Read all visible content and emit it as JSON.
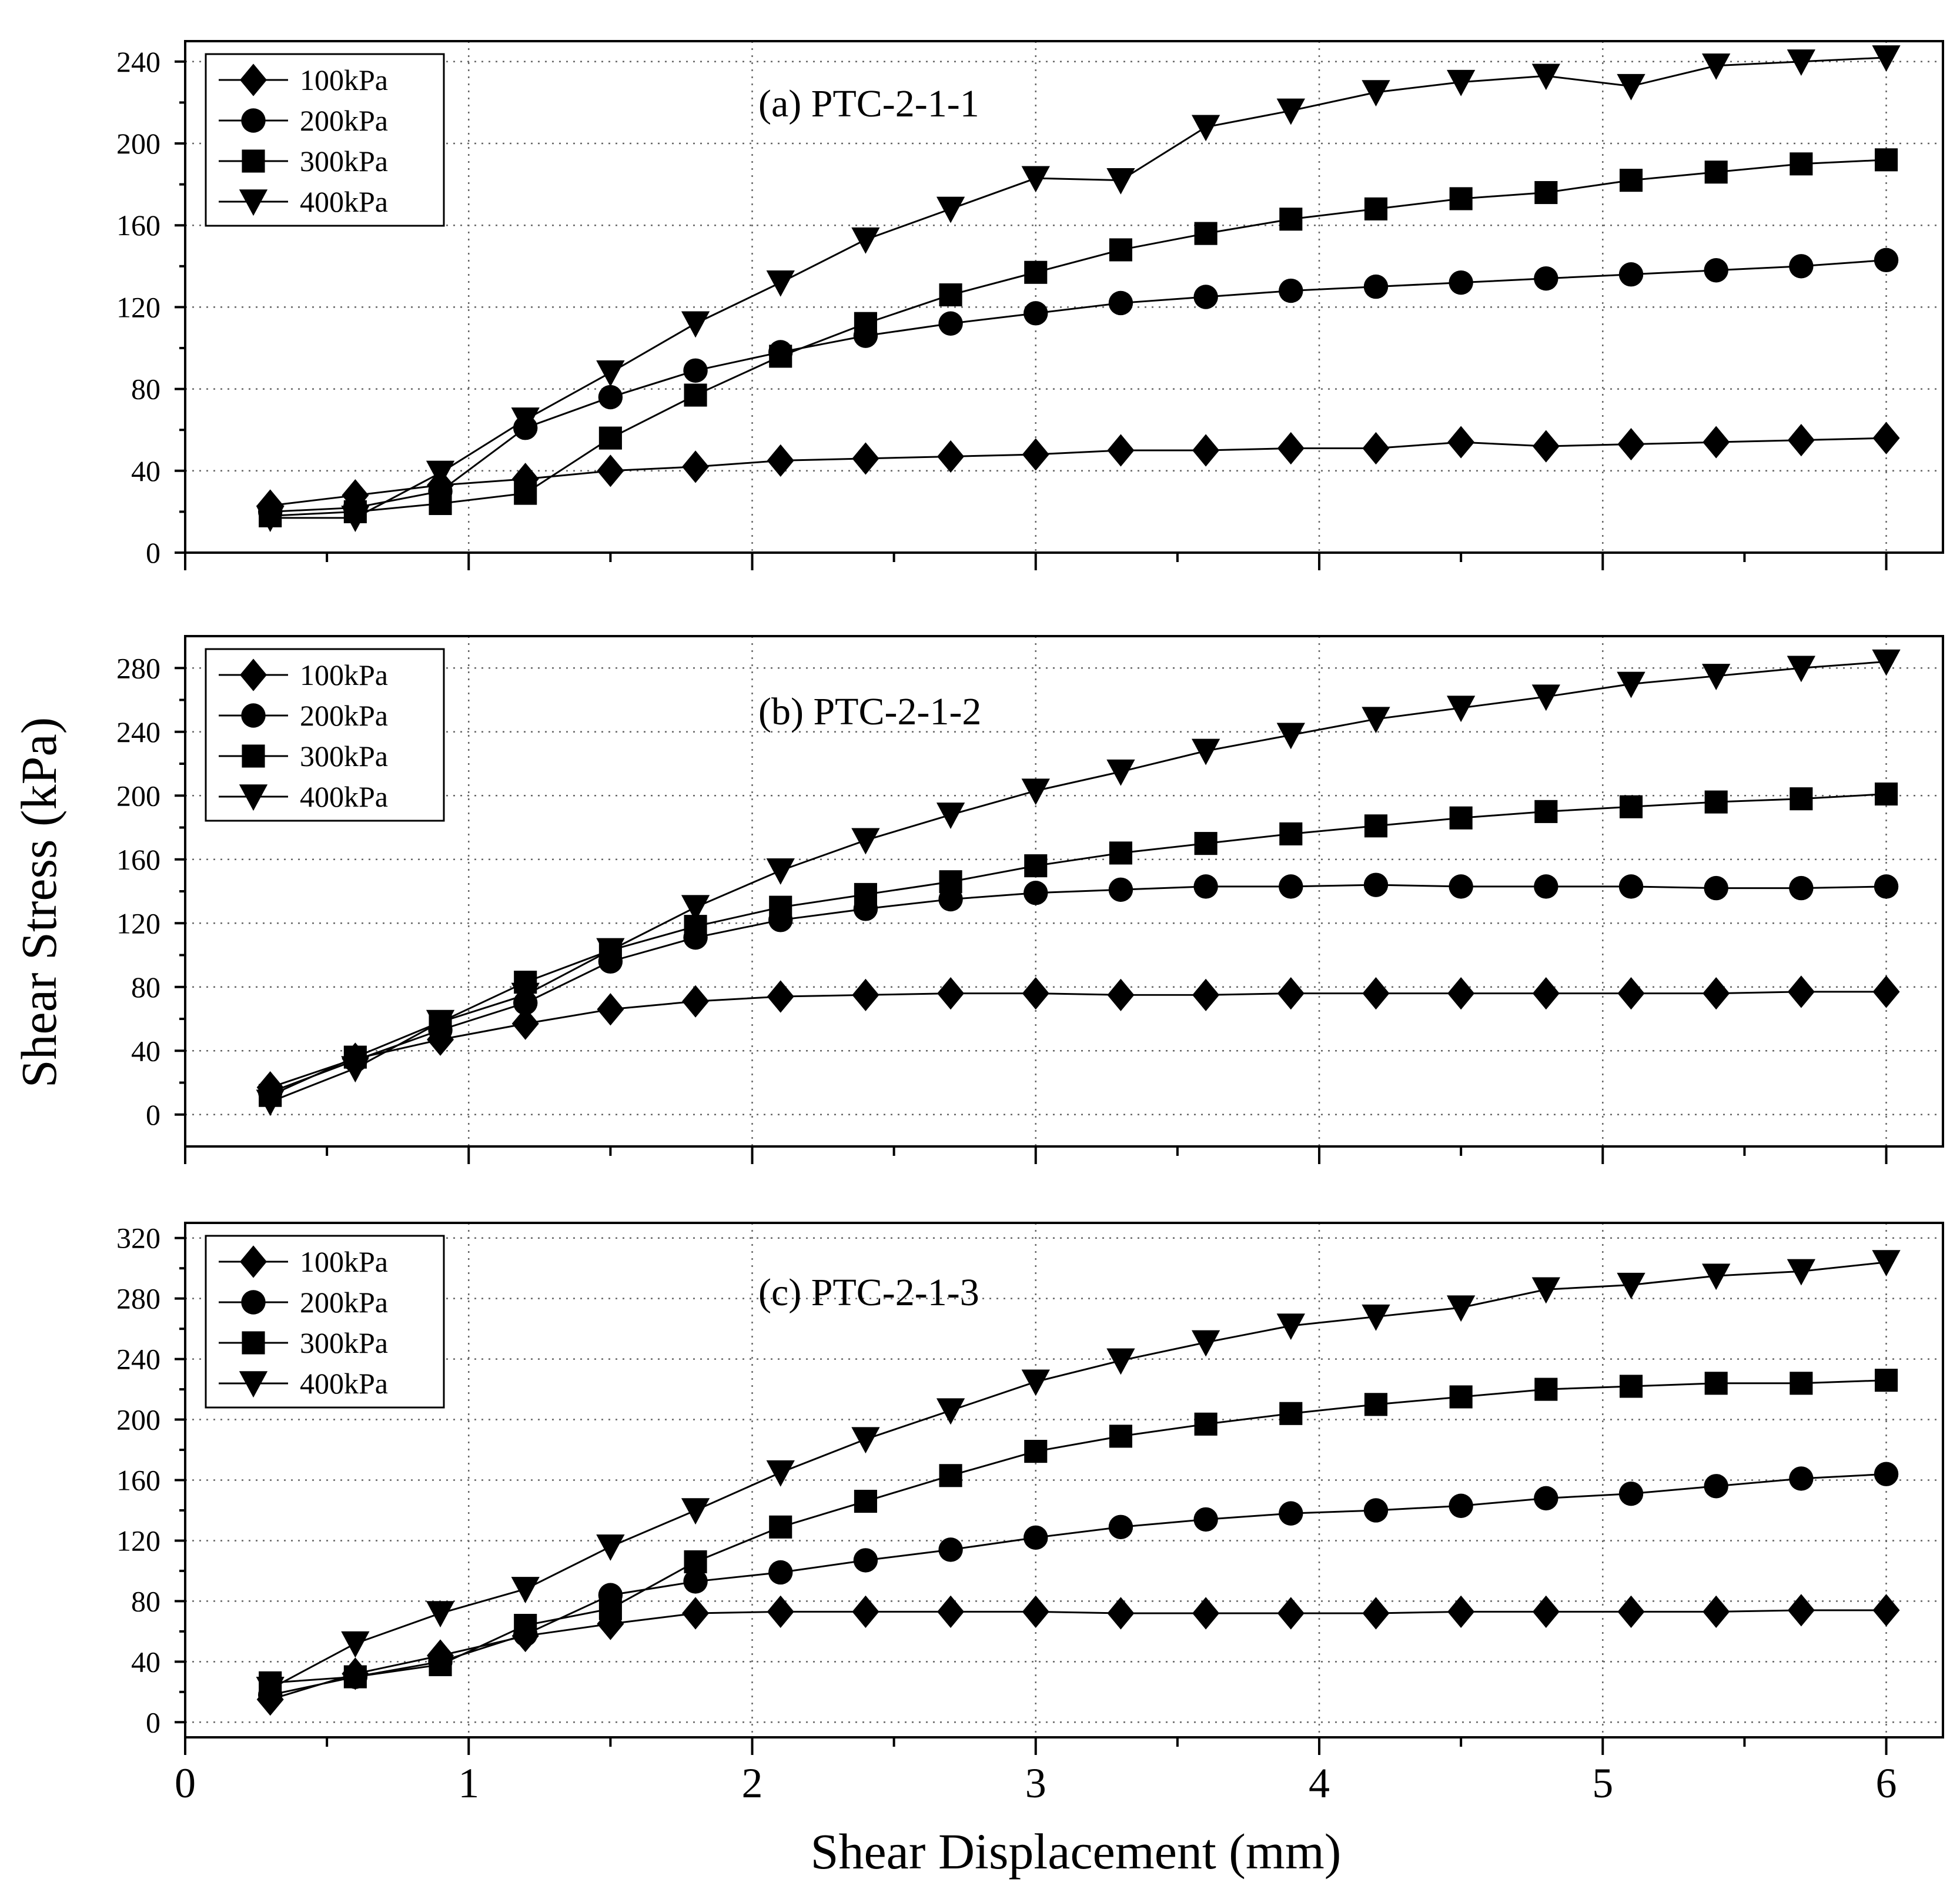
{
  "chart_data": [
    {
      "type": "line",
      "title": "(a) PTC-2-1-1",
      "x": [
        0.3,
        0.6,
        0.9,
        1.2,
        1.5,
        1.8,
        2.1,
        2.4,
        2.7,
        3.0,
        3.3,
        3.6,
        3.9,
        4.2,
        4.5,
        4.8,
        5.1,
        5.4,
        5.7,
        6.0
      ],
      "ylim": [
        0,
        250
      ],
      "yticks": [
        "0",
        "40",
        "80",
        "120",
        "160",
        "200",
        "240"
      ],
      "series": [
        {
          "name": "100kPa",
          "marker": "diamond",
          "values": [
            23,
            28,
            33,
            36,
            40,
            42,
            45,
            46,
            47,
            48,
            50,
            50,
            51,
            51,
            54,
            52,
            53,
            54,
            55,
            56
          ]
        },
        {
          "name": "200kPa",
          "marker": "circle",
          "values": [
            20,
            22,
            30,
            61,
            76,
            89,
            98,
            106,
            112,
            117,
            122,
            125,
            128,
            130,
            132,
            134,
            136,
            138,
            140,
            143
          ]
        },
        {
          "name": "300kPa",
          "marker": "square",
          "values": [
            18,
            20,
            24,
            29,
            56,
            77,
            96,
            112,
            126,
            137,
            148,
            156,
            163,
            168,
            173,
            176,
            182,
            186,
            190,
            192
          ]
        },
        {
          "name": "400kPa",
          "marker": "triangle-down",
          "values": [
            17,
            17,
            39,
            65,
            88,
            112,
            132,
            153,
            168,
            183,
            182,
            208,
            216,
            225,
            230,
            233,
            228,
            238,
            240,
            242
          ]
        }
      ]
    },
    {
      "type": "line",
      "title": "(b) PTC-2-1-2",
      "x": [
        0.3,
        0.6,
        0.9,
        1.2,
        1.5,
        1.8,
        2.1,
        2.4,
        2.7,
        3.0,
        3.3,
        3.6,
        3.9,
        4.2,
        4.5,
        4.8,
        5.1,
        5.4,
        5.7,
        6.0
      ],
      "ylim": [
        -20,
        300
      ],
      "yticks": [
        "0",
        "40",
        "80",
        "120",
        "160",
        "200",
        "240",
        "280"
      ],
      "series": [
        {
          "name": "100kPa",
          "marker": "diamond",
          "values": [
            17,
            35,
            47,
            57,
            66,
            71,
            74,
            75,
            76,
            76,
            75,
            75,
            76,
            76,
            76,
            76,
            76,
            76,
            77,
            77
          ]
        },
        {
          "name": "200kPa",
          "marker": "circle",
          "values": [
            14,
            34,
            53,
            70,
            96,
            111,
            122,
            129,
            135,
            139,
            141,
            143,
            143,
            144,
            143,
            143,
            143,
            142,
            142,
            143
          ]
        },
        {
          "name": "300kPa",
          "marker": "square",
          "values": [
            12,
            36,
            58,
            83,
            103,
            118,
            130,
            138,
            146,
            156,
            164,
            170,
            176,
            181,
            186,
            190,
            193,
            196,
            198,
            201
          ]
        },
        {
          "name": "400kPa",
          "marker": "triangle-down",
          "values": [
            8,
            29,
            58,
            75,
            103,
            130,
            153,
            172,
            188,
            203,
            215,
            228,
            238,
            248,
            255,
            262,
            270,
            275,
            280,
            284
          ]
        }
      ]
    },
    {
      "type": "line",
      "title": "(c) PTC-2-1-3",
      "x": [
        0.3,
        0.6,
        0.9,
        1.2,
        1.5,
        1.8,
        2.1,
        2.4,
        2.7,
        3.0,
        3.3,
        3.6,
        3.9,
        4.2,
        4.5,
        4.8,
        5.1,
        5.4,
        5.7,
        6.0
      ],
      "ylim": [
        -10,
        330
      ],
      "yticks": [
        "0",
        "40",
        "80",
        "120",
        "160",
        "200",
        "240",
        "280",
        "320"
      ],
      "series": [
        {
          "name": "100kPa",
          "marker": "diamond",
          "values": [
            15,
            32,
            44,
            57,
            65,
            72,
            73,
            73,
            73,
            73,
            72,
            72,
            72,
            72,
            73,
            73,
            73,
            73,
            74,
            74
          ]
        },
        {
          "name": "200kPa",
          "marker": "circle",
          "values": [
            18,
            30,
            40,
            58,
            84,
            93,
            99,
            107,
            114,
            122,
            129,
            134,
            138,
            140,
            143,
            148,
            151,
            156,
            161,
            164
          ]
        },
        {
          "name": "300kPa",
          "marker": "square",
          "values": [
            26,
            30,
            38,
            64,
            75,
            106,
            129,
            146,
            163,
            179,
            189,
            197,
            204,
            210,
            215,
            220,
            222,
            224,
            224,
            226
          ]
        },
        {
          "name": "400kPa",
          "marker": "triangle-down",
          "values": [
            22,
            52,
            72,
            88,
            116,
            140,
            165,
            187,
            206,
            225,
            239,
            251,
            262,
            268,
            274,
            286,
            289,
            295,
            298,
            304
          ]
        }
      ]
    }
  ],
  "shared": {
    "xlabel": "Shear Displacement (mm)",
    "ylabel": "Shear Stress (kPa)",
    "xlim": [
      0,
      6.2
    ],
    "xticks": [
      "0",
      "1",
      "2",
      "3",
      "4",
      "5",
      "6"
    ],
    "legend_position": "top-left",
    "grid": true
  }
}
